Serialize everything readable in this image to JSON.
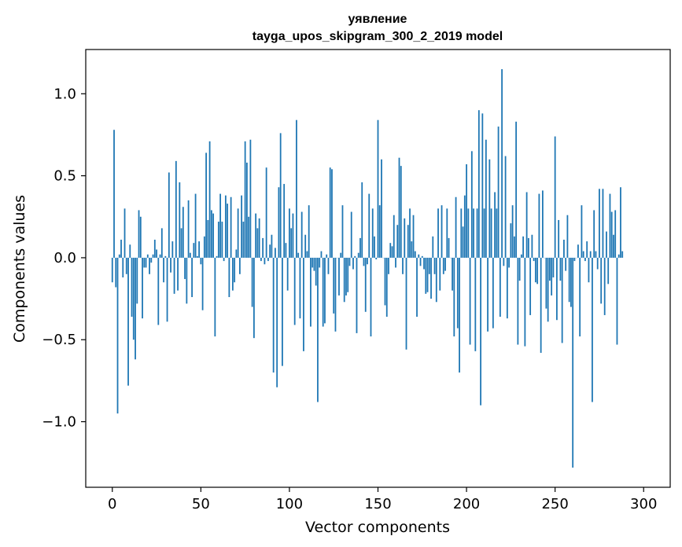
{
  "chart_data": {
    "type": "bar",
    "title": "уявление",
    "subtitle": "tayga_upos_skipgram_300_2_2019 model",
    "xlabel": "Vector components",
    "ylabel": "Components values",
    "xlim": [
      -15,
      315
    ],
    "ylim": [
      -1.4,
      1.27
    ],
    "xticks": [
      0,
      50,
      100,
      150,
      200,
      250,
      300
    ],
    "yticks": [
      -1.0,
      -0.5,
      0.0,
      0.5,
      1.0
    ],
    "ytick_labels": [
      "−1.0",
      "−0.5",
      "0.0",
      "0.5",
      "1.0"
    ],
    "bar_color": "#1f77b4",
    "values": [
      -0.15,
      0.78,
      -0.18,
      -0.95,
      0.02,
      0.11,
      -0.12,
      0.3,
      -0.1,
      -0.78,
      0.08,
      -0.36,
      -0.5,
      -0.62,
      -0.28,
      0.29,
      0.25,
      -0.37,
      -0.06,
      -0.06,
      0.02,
      -0.1,
      -0.03,
      0.02,
      0.11,
      0.05,
      -0.41,
      0.02,
      0.18,
      -0.15,
      0.01,
      -0.39,
      0.52,
      -0.09,
      0.1,
      -0.22,
      0.59,
      -0.2,
      0.46,
      0.18,
      0.31,
      -0.13,
      -0.28,
      0.35,
      0.03,
      -0.24,
      0.09,
      0.39,
      0.01,
      0.1,
      -0.04,
      -0.32,
      0.13,
      0.64,
      0.23,
      0.71,
      0.29,
      0.27,
      -0.48,
      0.01,
      0.22,
      0.39,
      0.22,
      -0.02,
      0.38,
      0.33,
      -0.24,
      0.37,
      -0.2,
      -0.15,
      0.05,
      0.3,
      -0.1,
      0.38,
      0.22,
      0.71,
      0.58,
      0.25,
      0.72,
      -0.3,
      -0.49,
      0.27,
      0.18,
      0.24,
      -0.02,
      0.12,
      -0.04,
      0.55,
      -0.02,
      0.08,
      0.14,
      -0.7,
      0.06,
      -0.79,
      0.43,
      0.76,
      -0.66,
      0.45,
      0.09,
      -0.2,
      0.3,
      0.18,
      0.27,
      -0.41,
      0.84,
      0.03,
      -0.37,
      0.28,
      -0.57,
      0.14,
      0.04,
      0.32,
      -0.42,
      -0.06,
      -0.08,
      -0.17,
      -0.88,
      -0.06,
      0.04,
      -0.42,
      -0.4,
      0.02,
      -0.1,
      0.55,
      0.54,
      -0.34,
      -0.45,
      0.0,
      -0.23,
      0.03,
      0.32,
      -0.27,
      -0.23,
      -0.21,
      -0.05,
      0.28,
      -0.07,
      0.01,
      -0.46,
      0.03,
      0.12,
      0.46,
      -0.05,
      -0.33,
      -0.04,
      0.39,
      -0.48,
      0.3,
      0.13,
      -0.01,
      0.84,
      0.32,
      0.6,
      0.0,
      -0.29,
      -0.36,
      -0.1,
      0.09,
      0.07,
      0.26,
      -0.06,
      0.2,
      0.61,
      0.56,
      -0.1,
      0.24,
      -0.56,
      0.2,
      0.3,
      0.1,
      0.26,
      0.04,
      -0.36,
      0.02,
      -0.05,
      0.01,
      -0.07,
      -0.22,
      -0.21,
      -0.1,
      -0.25,
      0.13,
      -0.1,
      -0.27,
      0.3,
      -0.2,
      0.32,
      -0.1,
      -0.08,
      0.3,
      0.12,
      0.0,
      -0.2,
      -0.48,
      0.37,
      -0.43,
      -0.7,
      0.3,
      0.19,
      0.38,
      0.57,
      0.3,
      -0.53,
      0.65,
      0.3,
      -0.57,
      0.3,
      0.9,
      -0.9,
      0.88,
      0.3,
      0.72,
      -0.45,
      0.6,
      0.3,
      -0.43,
      0.4,
      0.3,
      0.8,
      -0.36,
      1.15,
      -0.05,
      0.62,
      -0.37,
      -0.06,
      0.21,
      0.32,
      0.13,
      0.83,
      -0.53,
      -0.14,
      0.02,
      0.13,
      -0.54,
      0.4,
      0.12,
      -0.35,
      0.14,
      -0.02,
      -0.15,
      -0.16,
      0.39,
      -0.58,
      0.41,
      0.0,
      -0.31,
      -0.39,
      -0.14,
      -0.23,
      -0.12,
      0.74,
      -0.38,
      0.23,
      -0.14,
      -0.52,
      0.11,
      -0.08,
      0.26,
      -0.27,
      -0.3,
      -1.28,
      -0.02,
      0.0,
      0.08,
      -0.48,
      0.32,
      0.04,
      -0.02,
      0.1,
      -0.15,
      0.04,
      -0.88,
      0.29,
      0.04,
      -0.07,
      0.42,
      -0.28,
      0.42,
      -0.35,
      0.16,
      -0.16,
      0.39,
      0.28,
      0.14,
      0.29,
      -0.53,
      0.02,
      0.43,
      0.04
    ]
  }
}
